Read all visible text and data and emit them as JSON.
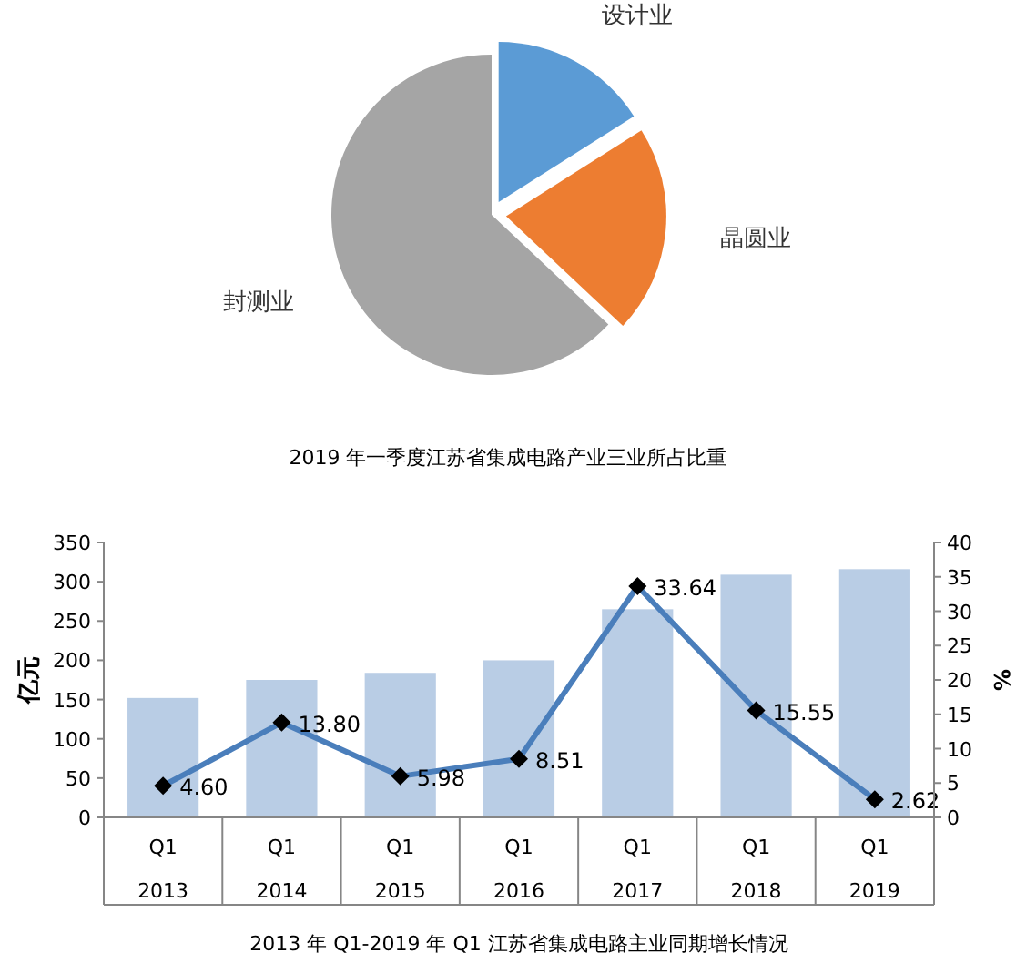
{
  "chart_data": [
    {
      "type": "pie",
      "title": "2019 年一季度江苏省集成电路产业三业所占比重",
      "categories": [
        "设计业",
        "晶圆业",
        "封测业"
      ],
      "values": [
        16,
        21,
        63
      ],
      "colors": [
        "#5b9bd5",
        "#ed7d31",
        "#a5a5a5"
      ]
    },
    {
      "type": "bar",
      "title": "2013 年 Q1-2019 年 Q1 江苏省集成电路主业同期增长情况",
      "ylabel": "亿元",
      "y2label": "%",
      "categories": [
        "Q1\n2013",
        "Q1\n2014",
        "Q1\n2015",
        "Q1\n2016",
        "Q1\n2017",
        "Q1\n2018",
        "Q1\n2019"
      ],
      "series": [
        {
          "type": "bar",
          "color": "#b9cde5",
          "values": [
            152,
            175,
            184,
            200,
            265,
            309,
            316
          ]
        },
        {
          "type": "line",
          "axis": "y2",
          "color": "#4a7ebb",
          "marker": "diamond",
          "values": [
            4.6,
            13.8,
            5.98,
            8.51,
            33.64,
            15.55,
            2.62
          ],
          "value_labels": [
            "4.60",
            "13.80",
            "5.98",
            "8.51",
            "33.64",
            "15.55",
            "2.62"
          ]
        }
      ],
      "ylim": [
        0,
        350
      ],
      "yticks": [
        0,
        50,
        100,
        150,
        200,
        250,
        300,
        350
      ],
      "y2lim": [
        0,
        40
      ],
      "y2ticks": [
        0,
        5,
        10,
        15,
        20,
        25,
        30,
        35,
        40
      ],
      "grid": false
    }
  ]
}
